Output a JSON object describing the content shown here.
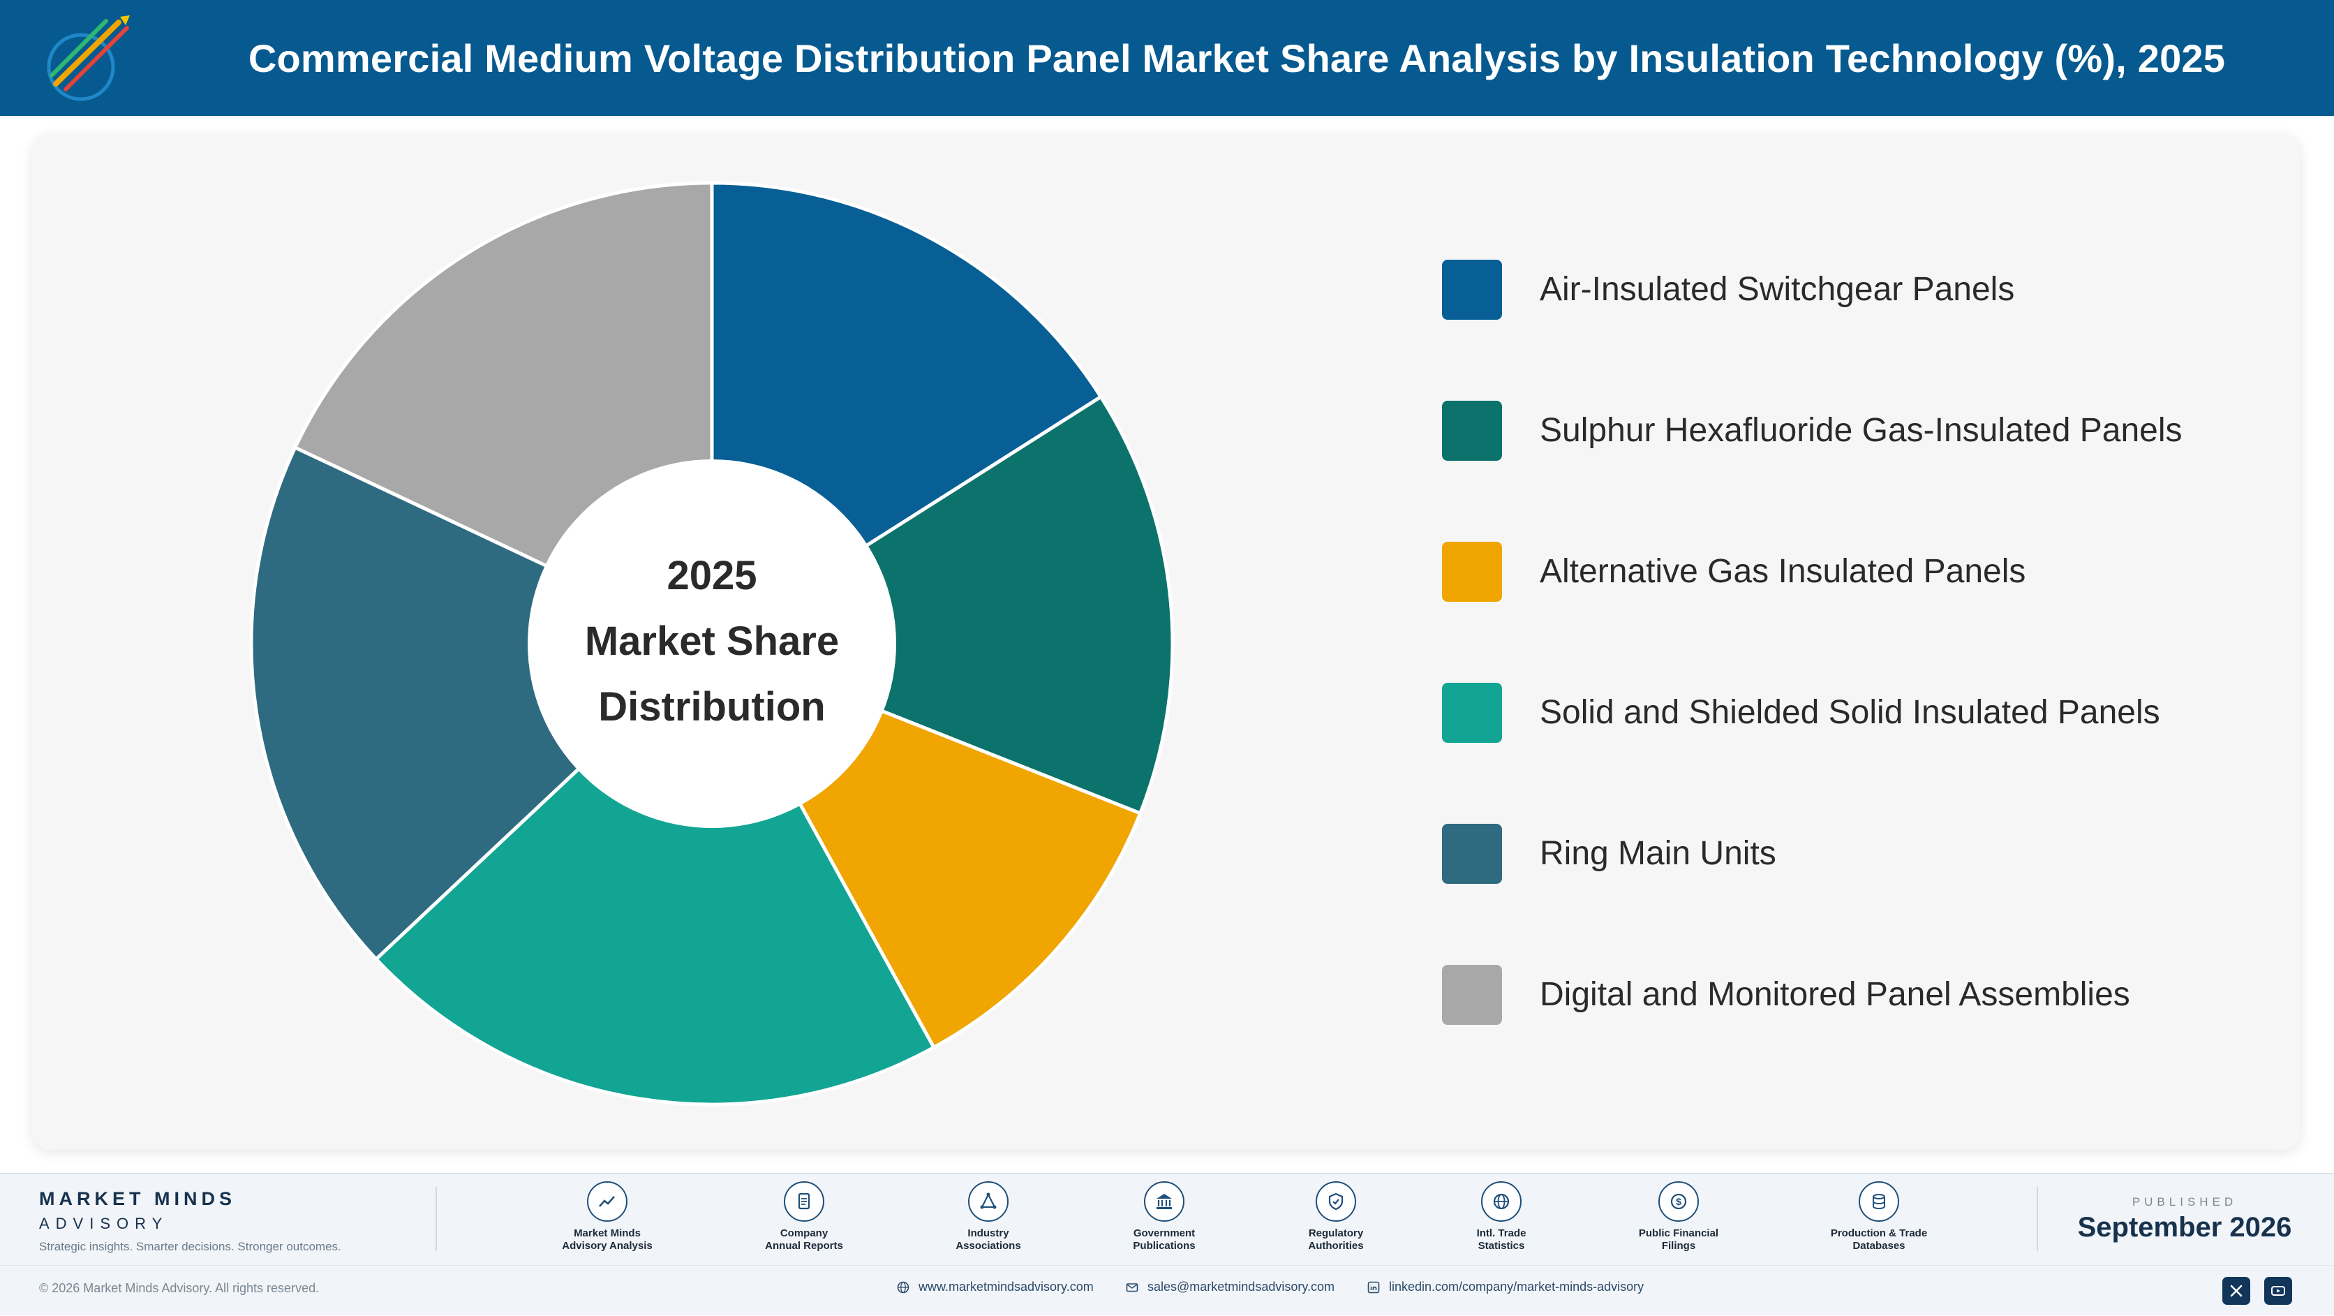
{
  "header": {
    "title": "Commercial Medium Voltage Distribution Panel Market Share Analysis by Insulation Technology (%), 2025"
  },
  "chart_data": {
    "type": "pie",
    "variant": "donut",
    "title": "Commercial Medium Voltage Distribution Panel Market Share Analysis by Insulation Technology (%), 2025",
    "center_label": [
      "2025",
      "Market Share",
      "Distribution"
    ],
    "legend_position": "right",
    "categories": [
      "Air-Insulated Switchgear Panels",
      "Sulphur Hexafluoride Gas-Insulated Panels",
      "Alternative Gas Insulated Panels",
      "Solid and Shielded Solid Insulated Panels",
      "Ring Main Units",
      "Digital and Monitored Panel Assemblies"
    ],
    "values": [
      16.0,
      15.0,
      11.0,
      21.0,
      19.0,
      18.0
    ],
    "colors": [
      "#075f95",
      "#0b726c",
      "#f0a500",
      "#12a594",
      "#2e6b81",
      "#a8a8a8"
    ]
  },
  "footer": {
    "brand_name": "MARKET MINDS",
    "brand_sub": "ADVISORY",
    "brand_tagline": "Strategic insights. Smarter decisions. Stronger outcomes.",
    "sources": [
      {
        "label": "Market Minds\nAdvisory Analysis",
        "icon": "chart-line-icon"
      },
      {
        "label": "Company\nAnnual Reports",
        "icon": "document-icon"
      },
      {
        "label": "Industry\nAssociations",
        "icon": "network-icon"
      },
      {
        "label": "Government\nPublications",
        "icon": "government-building-icon"
      },
      {
        "label": "Regulatory\nAuthorities",
        "icon": "shield-check-icon"
      },
      {
        "label": "Intl. Trade\nStatistics",
        "icon": "globe-icon"
      },
      {
        "label": "Public Financial\nFilings",
        "icon": "dollar-coin-icon"
      },
      {
        "label": "Production & Trade\nDatabases",
        "icon": "database-icon"
      }
    ],
    "published_label": "PUBLISHED",
    "published_date": "September 2026",
    "copyright": "© 2026 Market Minds Advisory. All rights reserved.",
    "website": "www.marketmindsadvisory.com",
    "email": "sales@marketmindsadvisory.com",
    "linkedin": "linkedin.com/company/market-minds-advisory"
  }
}
